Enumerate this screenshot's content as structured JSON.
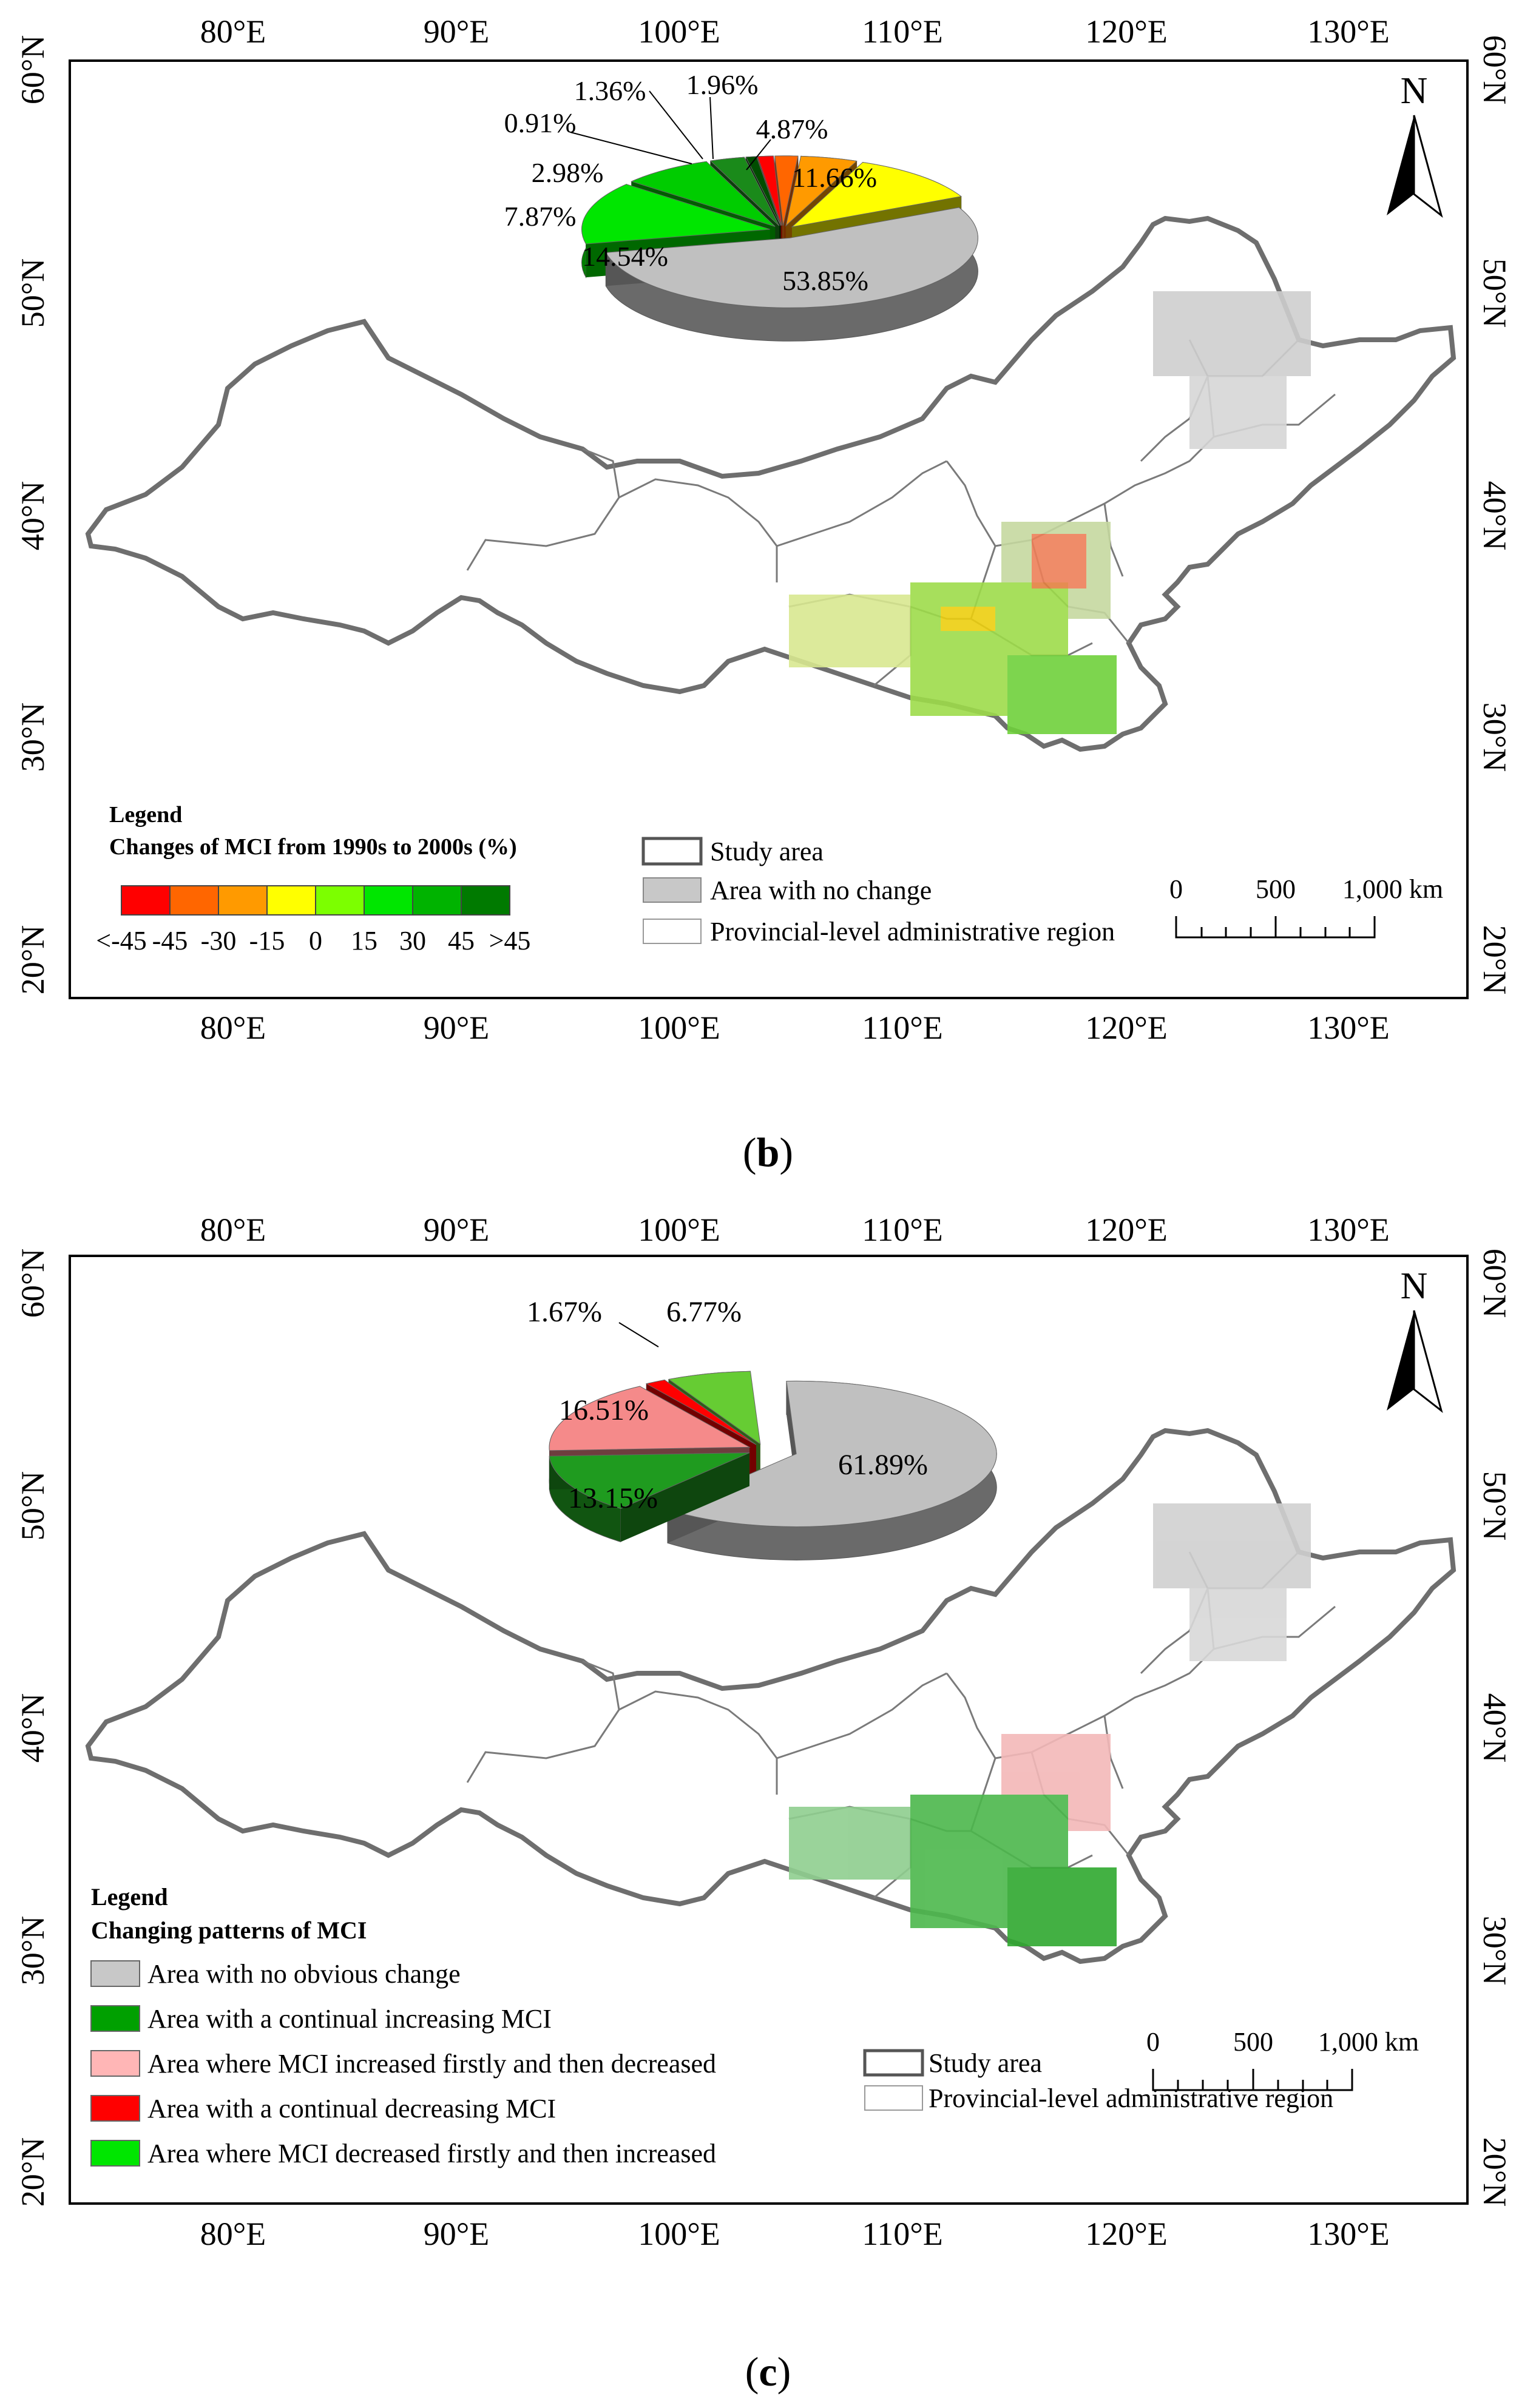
{
  "axes": {
    "lon_labels": [
      "80°E",
      "90°E",
      "100°E",
      "110°E",
      "120°E",
      "130°E"
    ],
    "lat_labels": [
      "60°N",
      "50°N",
      "40°N",
      "30°N",
      "20°N"
    ],
    "lon_values": [
      80,
      90,
      100,
      110,
      120,
      130
    ],
    "lat_values": [
      60,
      50,
      40,
      30,
      20
    ]
  },
  "north_arrow": {
    "label": "N"
  },
  "panel_b": {
    "caption_open": "(",
    "caption_letter": "b",
    "caption_close": ")",
    "legend_title": "Legend",
    "legend_subtitle": "Changes of MCI from 1990s to 2000s (%)",
    "color_scale": {
      "colors": [
        "#ff0000",
        "#ff6600",
        "#ff9a00",
        "#ffff00",
        "#7cff00",
        "#00e600",
        "#00b300",
        "#007a00"
      ],
      "tick_labels": [
        "<-45",
        "-45",
        "-30",
        "-15",
        "0",
        "15",
        "30",
        "45",
        ">45"
      ]
    },
    "boundary_legend": [
      "Study area",
      "Area with no change",
      "Provincial-level administrative region"
    ],
    "scalebar": {
      "labels": [
        "0",
        "500",
        "1,000 km"
      ]
    },
    "chart_data": {
      "type": "pie",
      "title": "",
      "labels": [
        "<-45",
        "-45 to -30",
        "-30 to -15",
        "-15 to 0",
        "no change",
        "0 to 15",
        "15 to 30",
        "30 to 45",
        ">45"
      ],
      "values": [
        1.36,
        1.96,
        4.87,
        11.66,
        53.85,
        14.54,
        7.87,
        2.98,
        0.91
      ],
      "value_labels": [
        "1.36%",
        "1.96%",
        "4.87%",
        "11.66%",
        "53.85%",
        "14.54%",
        "7.87%",
        "2.98%",
        "0.91%"
      ],
      "colors": [
        "#ff0000",
        "#ff6600",
        "#ff9a00",
        "#ffff00",
        "#c0c0c0",
        "#00e600",
        "#00cc00",
        "#1a8a1a",
        "#004d00"
      ]
    }
  },
  "panel_c": {
    "caption_open": "(",
    "caption_letter": "c",
    "caption_close": ")",
    "legend_title": "Legend",
    "legend_subtitle": "Changing patterns of  MCI",
    "pattern_legend": [
      {
        "label": "Area with no obvious change",
        "color": "#c8c8c8"
      },
      {
        "label": "Area with a continual increasing MCI",
        "color": "#00a000"
      },
      {
        "label": "Area where MCI increased firstly and then decreased",
        "color": "#ffb6b6"
      },
      {
        "label": "Area with a continual decreasing MCI",
        "color": "#ff0000"
      },
      {
        "label": "Area where MCI decreased firstly and then increased",
        "color": "#00e600"
      }
    ],
    "boundary_legend": [
      "Study area",
      "Provincial-level administrative region"
    ],
    "scalebar": {
      "labels": [
        "0",
        "500",
        "1,000 km"
      ]
    },
    "chart_data": {
      "type": "pie",
      "title": "",
      "labels": [
        "Area with no obvious change",
        "Area with a continual increasing MCI",
        "Area where MCI increased firstly and then decreased",
        "Area with a continual decreasing MCI",
        "Area where MCI decreased firstly and then increased"
      ],
      "values": [
        61.89,
        13.15,
        16.51,
        1.67,
        6.77
      ],
      "value_labels": [
        "61.89%",
        "13.15%",
        "16.51%",
        "1.67%",
        "6.77%"
      ],
      "colors": [
        "#c0c0c0",
        "#1f9b1f",
        "#f58a8a",
        "#ff0000",
        "#66cc33"
      ]
    }
  }
}
